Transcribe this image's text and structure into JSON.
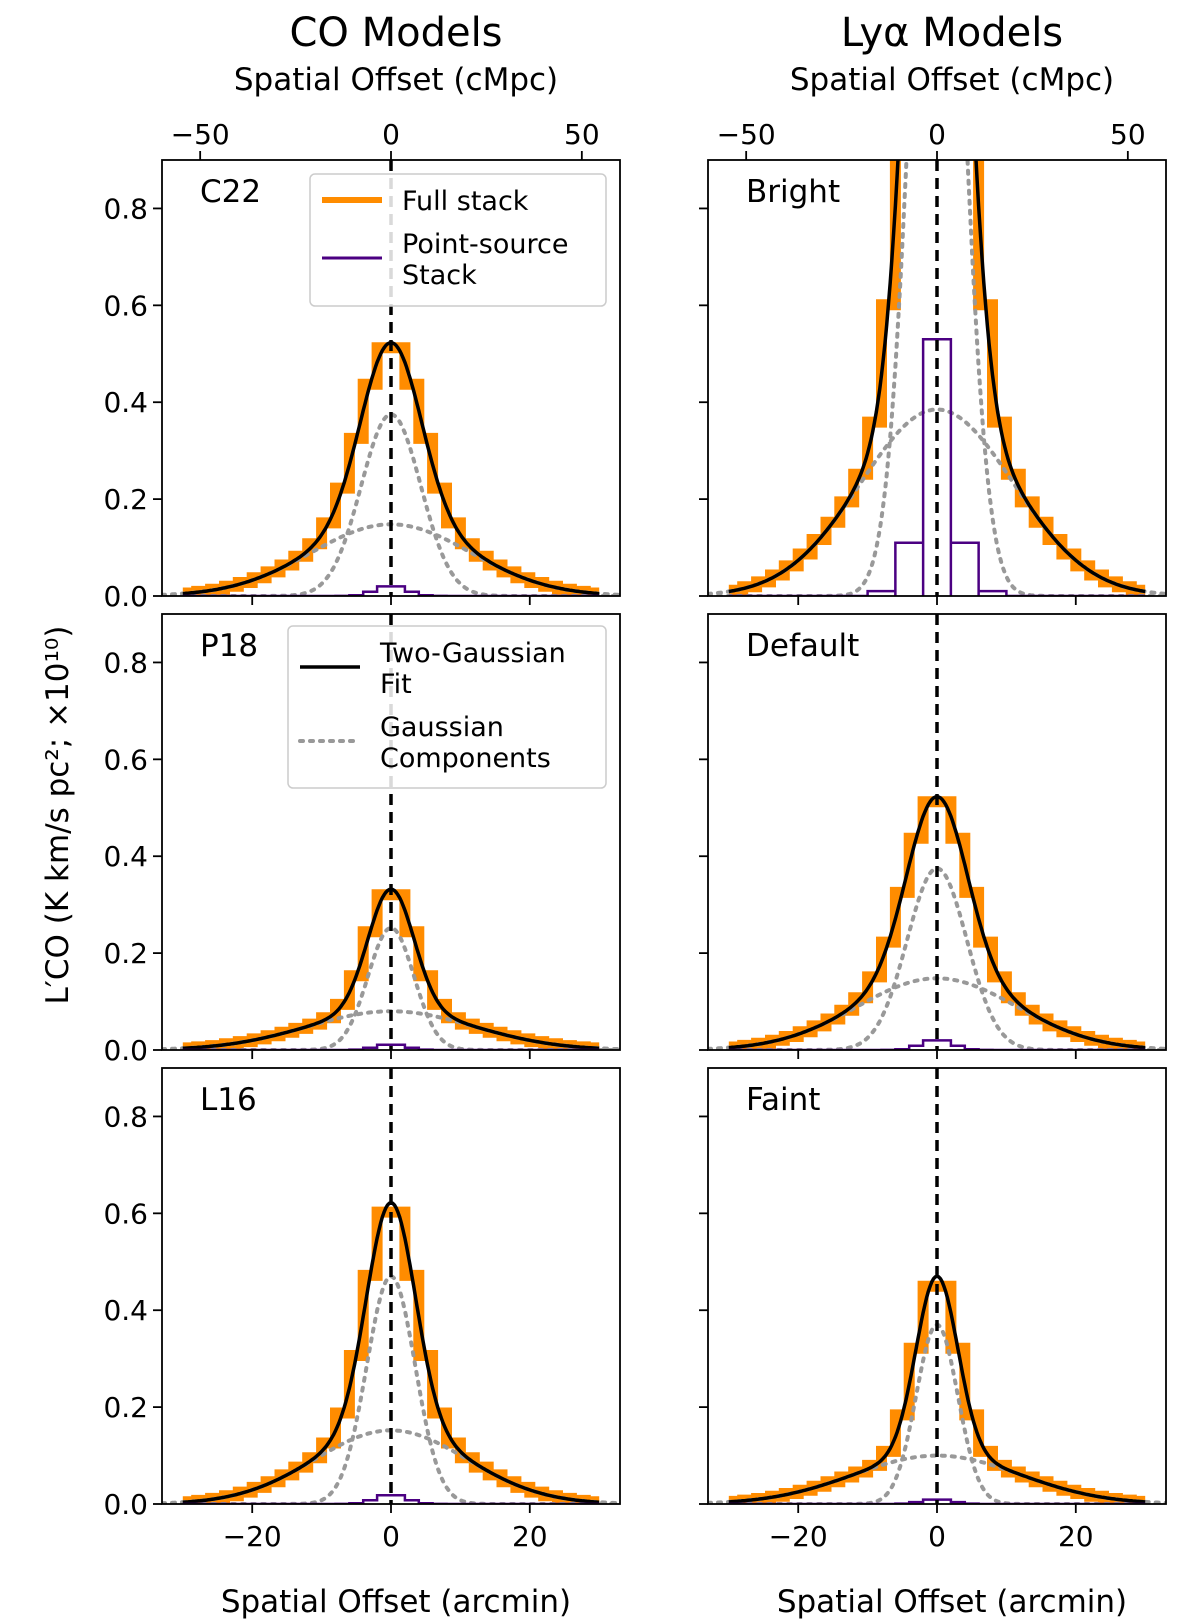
{
  "figure": {
    "column_titles": [
      "CO Models",
      "Lyα Models"
    ],
    "top_axis_label": "Spatial Offset (cMpc)",
    "bottom_axis_label": "Spatial Offset (arcmin)",
    "y_axis_label": "L′CO (K km/s pc²; ×10¹⁰)",
    "colors": {
      "full_stack": "#ff8c00",
      "point_source": "#4b0082",
      "fit": "#000000",
      "components": "#999999",
      "center_line": "#000000"
    }
  },
  "chart_data": [
    {
      "type": "line",
      "panel": "C22",
      "column": "CO Models",
      "xlim": [
        -33,
        33
      ],
      "ylim": [
        0,
        0.9
      ],
      "top_xlim": [
        -60,
        60
      ],
      "x_ticks": [
        -20,
        0,
        20
      ],
      "y_ticks": [
        0.0,
        0.2,
        0.4,
        0.6,
        0.8
      ],
      "top_ticks": [
        -50,
        0,
        50
      ],
      "series": [
        {
          "name": "Full stack",
          "model": "two_gauss",
          "amp1": 0.375,
          "sigma1": 4.3,
          "amp2": 0.148,
          "sigma2": 11.5
        },
        {
          "name": "Point-source Stack",
          "model": "gauss",
          "amp": 0.022,
          "sigma": 2.2
        },
        {
          "name": "Two-Gaussian Fit",
          "amp1": 0.375,
          "sigma1": 4.3,
          "amp2": 0.148,
          "sigma2": 11.5
        },
        {
          "name": "Gaussian Components"
        }
      ]
    },
    {
      "type": "line",
      "panel": "P18",
      "column": "CO Models",
      "xlim": [
        -33,
        33
      ],
      "ylim": [
        0,
        0.9
      ],
      "top_xlim": [
        -60,
        60
      ],
      "x_ticks": [
        -20,
        0,
        20
      ],
      "y_ticks": [
        0.0,
        0.2,
        0.4,
        0.6,
        0.8
      ],
      "top_ticks": [
        -50,
        0,
        50
      ],
      "series": [
        {
          "name": "Full stack",
          "model": "two_gauss",
          "amp1": 0.252,
          "sigma1": 3.3,
          "amp2": 0.08,
          "sigma2": 12.0
        },
        {
          "name": "Point-source Stack",
          "model": "gauss",
          "amp": 0.012,
          "sigma": 2.2
        },
        {
          "name": "Two-Gaussian Fit",
          "amp1": 0.252,
          "sigma1": 3.3,
          "amp2": 0.08,
          "sigma2": 12.0
        },
        {
          "name": "Gaussian Components"
        }
      ]
    },
    {
      "type": "line",
      "panel": "L16",
      "column": "CO Models",
      "xlim": [
        -33,
        33
      ],
      "ylim": [
        0,
        0.9
      ],
      "top_xlim": [
        -60,
        60
      ],
      "x_ticks": [
        -20,
        0,
        20
      ],
      "y_ticks": [
        0.0,
        0.2,
        0.4,
        0.6,
        0.8
      ],
      "top_ticks": [
        -50,
        0,
        50
      ],
      "series": [
        {
          "name": "Full stack",
          "model": "two_gauss",
          "amp1": 0.47,
          "sigma1": 3.5,
          "amp2": 0.152,
          "sigma2": 11.0
        },
        {
          "name": "Point-source Stack",
          "model": "gauss",
          "amp": 0.02,
          "sigma": 2.2
        },
        {
          "name": "Two-Gaussian Fit",
          "amp1": 0.47,
          "sigma1": 3.5,
          "amp2": 0.152,
          "sigma2": 11.0
        },
        {
          "name": "Gaussian Components"
        }
      ]
    },
    {
      "type": "line",
      "panel": "Bright",
      "column": "Lyα Models",
      "xlim": [
        -33,
        33
      ],
      "ylim": [
        0,
        0.9
      ],
      "top_xlim": [
        -60,
        60
      ],
      "x_ticks": [
        -20,
        0,
        20
      ],
      "y_ticks": [
        0.0,
        0.2,
        0.4,
        0.6,
        0.8
      ],
      "top_ticks": [
        -50,
        0,
        50
      ],
      "series": [
        {
          "name": "Full stack",
          "model": "two_gauss",
          "amp1": 1.9,
          "sigma1": 3.6,
          "amp2": 0.385,
          "sigma2": 11.0
        },
        {
          "name": "Point-source Stack",
          "model": "bins",
          "bins": [
            [
              -10,
              -6,
              0.01
            ],
            [
              -6,
              -2,
              0.11
            ],
            [
              -2,
              2,
              0.53
            ],
            [
              2,
              6,
              0.11
            ],
            [
              6,
              10,
              0.01
            ]
          ]
        },
        {
          "name": "Two-Gaussian Fit",
          "amp1": 1.9,
          "sigma1": 3.6,
          "amp2": 0.385,
          "sigma2": 11.0
        },
        {
          "name": "Gaussian Components"
        }
      ]
    },
    {
      "type": "line",
      "panel": "Default",
      "column": "Lyα Models",
      "xlim": [
        -33,
        33
      ],
      "ylim": [
        0,
        0.9
      ],
      "top_xlim": [
        -60,
        60
      ],
      "x_ticks": [
        -20,
        0,
        20
      ],
      "y_ticks": [
        0.0,
        0.2,
        0.4,
        0.6,
        0.8
      ],
      "top_ticks": [
        -50,
        0,
        50
      ],
      "series": [
        {
          "name": "Full stack",
          "model": "two_gauss",
          "amp1": 0.375,
          "sigma1": 4.3,
          "amp2": 0.148,
          "sigma2": 11.5
        },
        {
          "name": "Point-source Stack",
          "model": "gauss",
          "amp": 0.022,
          "sigma": 2.2
        },
        {
          "name": "Two-Gaussian Fit",
          "amp1": 0.375,
          "sigma1": 4.3,
          "amp2": 0.148,
          "sigma2": 11.5
        },
        {
          "name": "Gaussian Components"
        }
      ]
    },
    {
      "type": "line",
      "panel": "Faint",
      "column": "Lyα Models",
      "xlim": [
        -33,
        33
      ],
      "ylim": [
        0,
        0.9
      ],
      "top_xlim": [
        -60,
        60
      ],
      "x_ticks": [
        -20,
        0,
        20
      ],
      "y_ticks": [
        0.0,
        0.2,
        0.4,
        0.6,
        0.8
      ],
      "top_ticks": [
        -50,
        0,
        50
      ],
      "series": [
        {
          "name": "Full stack",
          "model": "two_gauss",
          "amp1": 0.37,
          "sigma1": 3.0,
          "amp2": 0.1,
          "sigma2": 12.0
        },
        {
          "name": "Point-source Stack",
          "model": "gauss",
          "amp": 0.01,
          "sigma": 2.2
        },
        {
          "name": "Two-Gaussian Fit",
          "amp1": 0.37,
          "sigma1": 3.0,
          "amp2": 0.1,
          "sigma2": 12.0
        },
        {
          "name": "Gaussian Components"
        }
      ]
    }
  ],
  "legends": {
    "upper": [
      {
        "label_lines": [
          "Full stack"
        ],
        "style": "full_stack"
      },
      {
        "label_lines": [
          "Point-source",
          "Stack"
        ],
        "style": "point_source"
      }
    ],
    "lower": [
      {
        "label_lines": [
          "Two-Gaussian",
          "Fit"
        ],
        "style": "fit"
      },
      {
        "label_lines": [
          "Gaussian",
          "Components"
        ],
        "style": "components"
      }
    ]
  }
}
